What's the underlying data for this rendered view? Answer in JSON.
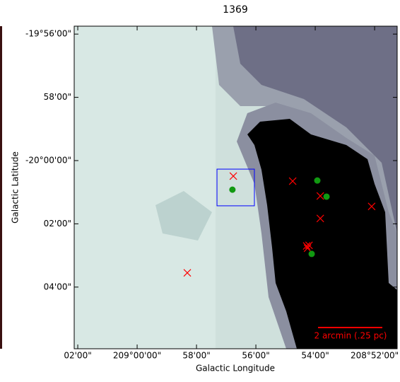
{
  "chart_data": {
    "type": "scatter",
    "title": "1369",
    "x_label": "Galactic Longitude",
    "y_label": "Galactic Latitude",
    "xlim": [
      2.12,
      -8.76
    ],
    "ylim": [
      -5.95,
      4.25
    ],
    "xticks": [
      {
        "value": 2,
        "label": "02'00\""
      },
      {
        "value": 0,
        "label": "209°00'00\""
      },
      {
        "value": -2,
        "label": "58'00\""
      },
      {
        "value": -4,
        "label": "56'00\""
      },
      {
        "value": -6,
        "label": "54'00\""
      },
      {
        "value": -8,
        "label": "208°52'00\""
      }
    ],
    "yticks": [
      {
        "value": 4,
        "label": "-19°56'00\""
      },
      {
        "value": 2,
        "label": "58'00\""
      },
      {
        "value": 0,
        "label": "-20°00'00\""
      },
      {
        "value": -2,
        "label": "02'00\""
      },
      {
        "value": -4,
        "label": "04'00\""
      }
    ],
    "markers": [
      {
        "color": "#ff0000",
        "marker": "x",
        "x": [
          -3.24,
          -5.24,
          -6.17,
          -6.17,
          -7.9,
          -5.71,
          -5.79,
          -5.74,
          -1.69
        ],
        "y": [
          -0.49,
          -0.65,
          -1.12,
          -1.83,
          -1.45,
          -2.7,
          -2.68,
          -2.77,
          -3.55
        ]
      },
      {
        "color": "#119911",
        "marker": "o",
        "x": [
          -3.21,
          -6.07,
          -6.38,
          -5.88
        ],
        "y": [
          -0.92,
          -0.63,
          -1.14,
          -2.95
        ]
      }
    ],
    "box": {
      "color": "#0000ff",
      "x": [
        -2.69,
        -3.95
      ],
      "y": [
        -0.27,
        -1.43
      ]
    },
    "annotation": "2 arcmin (.25 pc)"
  }
}
